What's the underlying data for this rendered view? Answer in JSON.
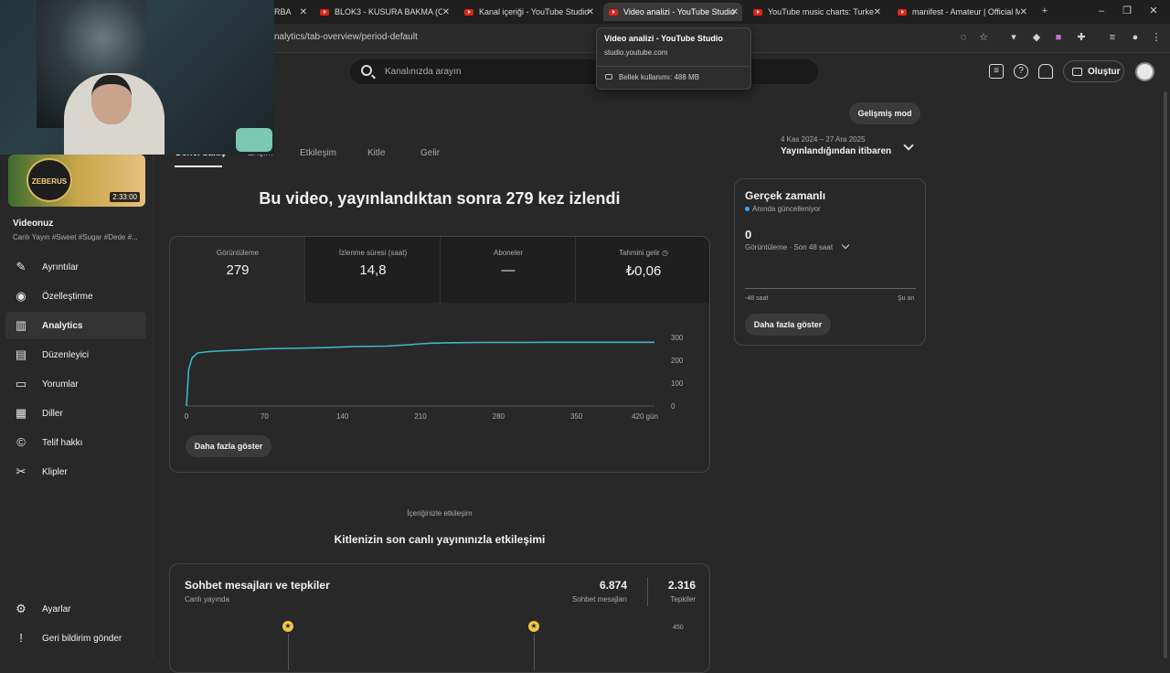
{
  "browser": {
    "tabs": [
      {
        "label": "RBA"
      },
      {
        "label": "BLOK3 - KUSURA BAKMA (Offic"
      },
      {
        "label": "Kanal içeriği - YouTube Studio"
      },
      {
        "label": "Video analizi - YouTube Studio"
      },
      {
        "label": "YouTube music charts: Turkey T"
      },
      {
        "label": "manifest - Amateur | Official M"
      }
    ],
    "url": "nalytics/tab-overview/period-default",
    "tooltip": {
      "title": "Video analizi - YouTube Studio",
      "domain": "studio.youtube.com",
      "memory": "Bellek kullanımı: 488 MB"
    }
  },
  "header": {
    "search_placeholder": "Kanalınızda arayın",
    "create_label": "Oluştur"
  },
  "sidebar": {
    "thumbnail_logo": "ZEBERUS",
    "duration": "2:33:00",
    "video_title": "Videonuz",
    "video_desc": "Canlı Yayın #Sweet #Sugar #Dede #...",
    "items": [
      {
        "label": "Ayrıntılar",
        "icon": "pencil-icon"
      },
      {
        "label": "Özelleştirme",
        "icon": "broadcast-icon"
      },
      {
        "label": "Analytics",
        "icon": "analytics-icon"
      },
      {
        "label": "Düzenleyici",
        "icon": "film-icon"
      },
      {
        "label": "Yorumlar",
        "icon": "comment-icon"
      },
      {
        "label": "Diller",
        "icon": "subtitles-icon"
      },
      {
        "label": "Telif hakkı",
        "icon": "copyright-icon"
      },
      {
        "label": "Klipler",
        "icon": "scissors-icon"
      }
    ],
    "bottom": [
      {
        "label": "Ayarlar",
        "icon": "gear-icon"
      },
      {
        "label": "Geri bildirim gönder",
        "icon": "feedback-icon"
      }
    ]
  },
  "content_tabs": [
    {
      "label": "Genel bakış"
    },
    {
      "label": "Erişim"
    },
    {
      "label": "Etkileşim"
    },
    {
      "label": "Kitle"
    },
    {
      "label": "Gelir"
    }
  ],
  "advanced_mode": "Gelişmiş mod",
  "date": {
    "range": "4 Kas 2024 – 27 Ara 2025",
    "period": "Yayınlandığından itibaren"
  },
  "headline": "Bu video, yayınlandıktan sonra 279 kez izlendi",
  "metrics": [
    {
      "label": "Görüntüleme",
      "value": "279"
    },
    {
      "label": "İzlenme süresi (saat)",
      "value": "14,8"
    },
    {
      "label": "Aboneler",
      "value": "—"
    },
    {
      "label": "Tahmini gelir",
      "value": "₺0,06"
    }
  ],
  "more_button": "Daha fazla göster",
  "chart_data": {
    "type": "line",
    "x": [
      0,
      2,
      5,
      10,
      20,
      35,
      50,
      70,
      90,
      120,
      150,
      180,
      200,
      210,
      220,
      240,
      270,
      300,
      330,
      360,
      390,
      420
    ],
    "y": [
      0,
      160,
      210,
      232,
      238,
      242,
      245,
      250,
      252,
      255,
      260,
      262,
      268,
      272,
      275,
      277,
      278,
      278,
      279,
      279,
      279,
      279
    ],
    "xticks": [
      "0",
      "70",
      "140",
      "210",
      "280",
      "350",
      "420 gün"
    ],
    "yticks": [
      "300",
      "200",
      "100",
      "0"
    ],
    "xlim": [
      0,
      420
    ],
    "ylim": [
      0,
      300
    ],
    "color": "#3fb7c6"
  },
  "realtime": {
    "title": "Gerçek zamanlı",
    "subtitle": "Anında güncelleniyor",
    "value": "0",
    "metric": "Görüntüleme · Son 48 saat",
    "left": "-48 saat",
    "right": "Şu an",
    "more_button": "Daha fazla göster"
  },
  "engagement": {
    "small": "İçeriğinizle etkileşim",
    "title": "Kitlenizin son canlı yayınınızla etkileşimi",
    "card_title": "Sohbet mesajları ve tepkiler",
    "card_sub": "Canlı yayında",
    "chat_value": "6.874",
    "chat_label": "Sohbet mesajları",
    "react_value": "2.316",
    "react_label": "Tepkiler",
    "axis_top": "450"
  }
}
